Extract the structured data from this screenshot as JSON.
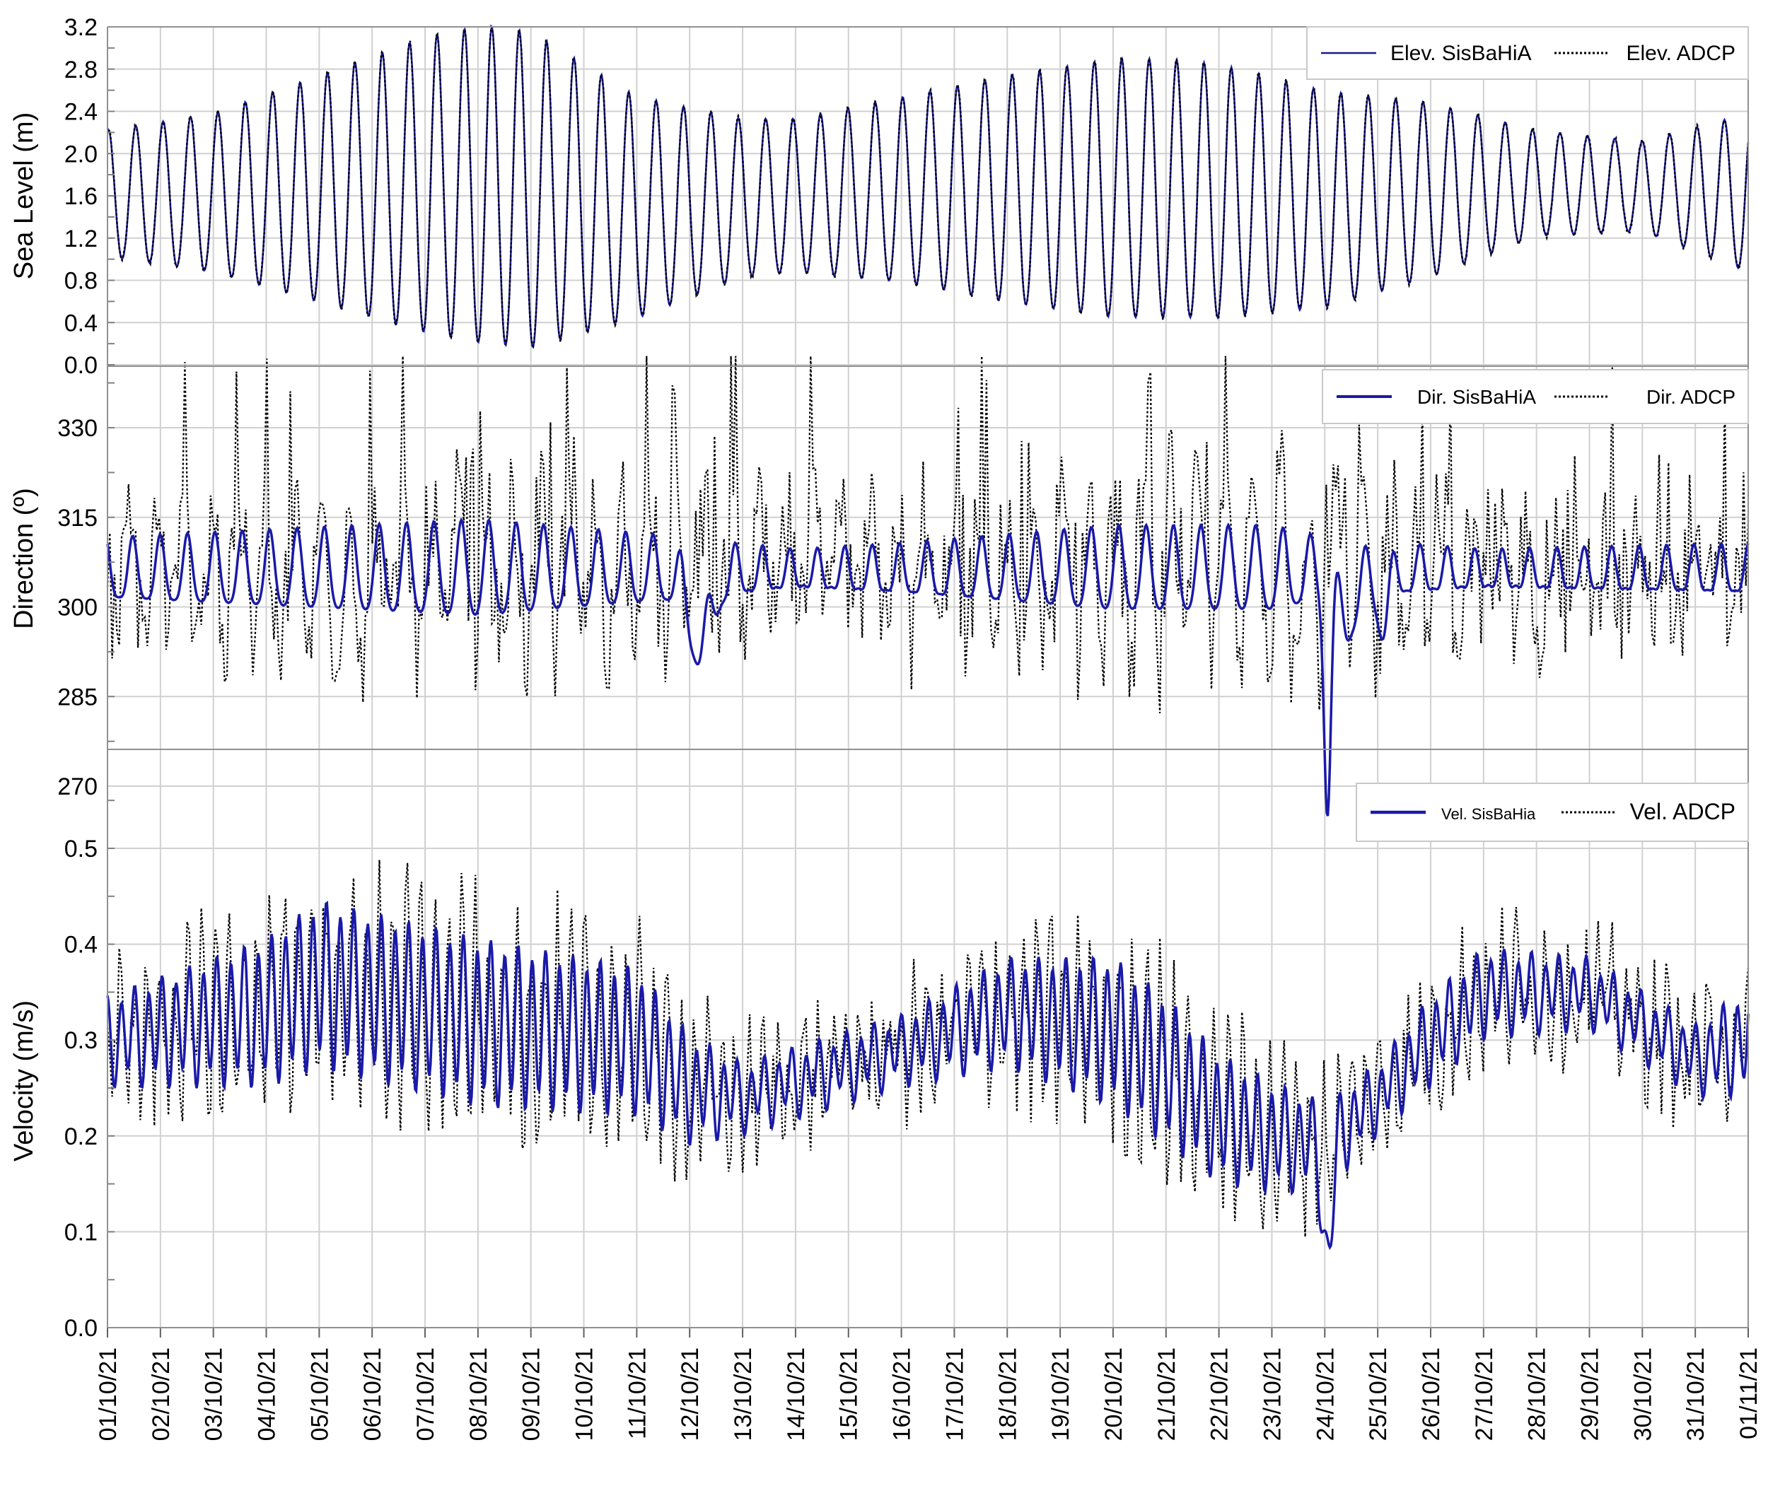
{
  "chart_data": [
    {
      "type": "line",
      "ylabel": "Sea Level (m)",
      "ylim": [
        0.0,
        3.2
      ],
      "yticks": [
        "0.0",
        "0.4",
        "0.8",
        "1.2",
        "1.6",
        "2.0",
        "2.4",
        "2.8",
        "3.2"
      ],
      "grid": true,
      "legend_position": "top-right",
      "x_axis": {
        "start": "01/10/21",
        "end": "01/11/21",
        "unit": "days"
      },
      "series": [
        {
          "name": "Elev. SisBaHiA",
          "style": "solid",
          "color": "#1a1a8c",
          "description": "semidiurnal tide, 2 cycles per day; spring tides ~7-8/10/21 (range ~0.1 to 3.15 m), neap ~13/10/21, second spring ~19-21/10/21 (range ~0.4 to 2.85 m)"
        },
        {
          "name": "Elev. ADCP",
          "style": "dotted",
          "color": "#000000"
        }
      ],
      "amplitude_envelope": {
        "days": [
          0,
          2,
          4,
          6,
          7,
          8,
          10,
          12,
          13,
          15,
          17,
          19,
          20,
          21,
          23,
          25,
          27,
          29,
          31
        ],
        "high": [
          2.2,
          2.35,
          2.7,
          3.05,
          3.15,
          3.1,
          2.5,
          2.3,
          2.3,
          2.5,
          2.7,
          2.85,
          2.85,
          2.8,
          2.55,
          2.45,
          2.2,
          2.1,
          2.35
        ],
        "low": [
          1.0,
          0.85,
          0.55,
          0.25,
          0.15,
          0.1,
          0.4,
          0.8,
          0.85,
          0.75,
          0.55,
          0.4,
          0.4,
          0.4,
          0.5,
          0.8,
          1.2,
          1.25,
          0.85
        ]
      }
    },
    {
      "type": "line",
      "ylabel": "Direction (º)",
      "ylim": [
        262,
        345
      ],
      "yticks": [
        "270",
        "285",
        "300",
        "315",
        "330"
      ],
      "grid": true,
      "legend_position": "top-right",
      "series": [
        {
          "name": "Dir. SisBaHiA",
          "style": "solid",
          "color": "#1a1aa8",
          "description": "oscillates ~296-314 degrees; dip to ~287 on 12/10/21; sharp drop to ~270 on 24/10/21"
        },
        {
          "name": "Dir. ADCP",
          "style": "dotted",
          "color": "#000000",
          "description": "noisy, ranges ~280-342 degrees"
        }
      ]
    },
    {
      "type": "line",
      "ylabel": "Velocity (m/s)",
      "ylim": [
        0.0,
        0.55
      ],
      "yticks": [
        "0.0",
        "0.1",
        "0.2",
        "0.3",
        "0.4",
        "0.5"
      ],
      "grid": true,
      "legend_position": "top-right",
      "series": [
        {
          "name": "Vel. SisBaHia",
          "style": "solid",
          "color": "#1a1aa8",
          "description": "oscillates ~0.2-0.49 m/s; minimum ~0.06 on 24/10/21"
        },
        {
          "name": "Vel. ADCP",
          "style": "dotted",
          "color": "#000000",
          "description": "noisy, ranges ~0.08-0.51 m/s"
        }
      ]
    }
  ],
  "x_tick_labels": [
    "01/10/21",
    "02/10/21",
    "03/10/21",
    "04/10/21",
    "05/10/21",
    "06/10/21",
    "07/10/21",
    "08/10/21",
    "09/10/21",
    "10/10/21",
    "11/10/21",
    "12/10/21",
    "13/10/21",
    "14/10/21",
    "15/10/21",
    "16/10/21",
    "17/10/21",
    "18/10/21",
    "19/10/21",
    "20/10/21",
    "21/10/21",
    "22/10/21",
    "23/10/21",
    "24/10/21",
    "25/10/21",
    "26/10/21",
    "27/10/21",
    "28/10/21",
    "29/10/21",
    "30/10/21",
    "31/10/21",
    "01/11/21"
  ],
  "colors": {
    "model": "#1a1aa8",
    "observed": "#000000",
    "grid": "#d0d0d0"
  }
}
